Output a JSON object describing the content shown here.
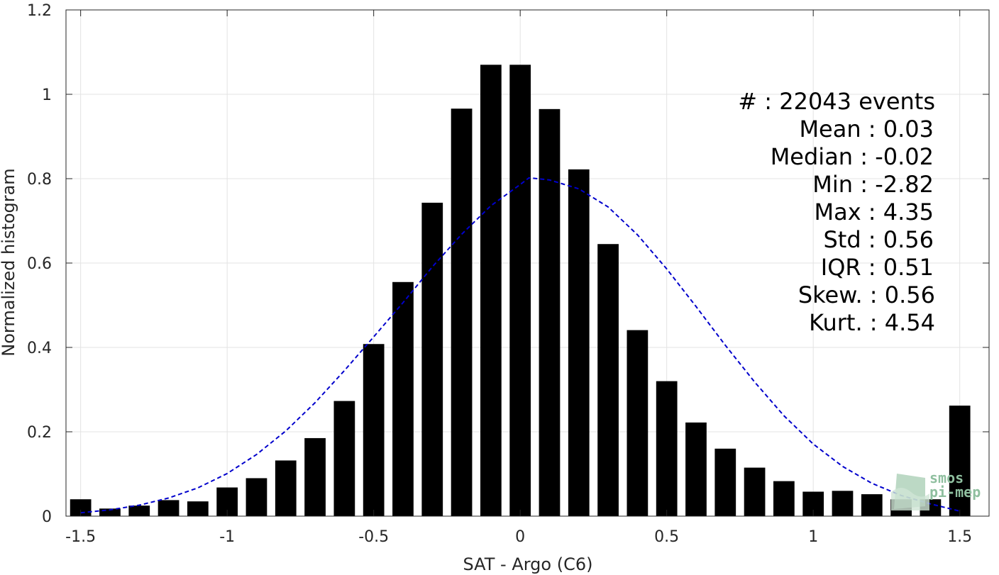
{
  "chart_data": {
    "type": "bar",
    "xlabel": "SAT - Argo (C6)",
    "ylabel": "Normalized histogram",
    "xlim": [
      -1.55,
      1.6
    ],
    "ylim": [
      0,
      1.2
    ],
    "xticks": [
      -1.5,
      -1,
      -0.5,
      0,
      0.5,
      1,
      1.5
    ],
    "xtick_labels": [
      "-1.5",
      "-1",
      "-0.5",
      "0",
      "0.5",
      "1",
      "1.5"
    ],
    "yticks": [
      0,
      0.2,
      0.4,
      0.6,
      0.8,
      1,
      1.2
    ],
    "ytick_labels": [
      "0",
      "0.2",
      "0.4",
      "0.6",
      "0.8",
      "1",
      "1.2"
    ],
    "grid": true,
    "bar_color": "#000000",
    "bars": {
      "x": [
        -1.5,
        -1.4,
        -1.3,
        -1.2,
        -1.1,
        -1.0,
        -0.9,
        -0.8,
        -0.7,
        -0.6,
        -0.5,
        -0.4,
        -0.3,
        -0.2,
        -0.1,
        0.0,
        0.1,
        0.2,
        0.3,
        0.4,
        0.5,
        0.6,
        0.7,
        0.8,
        0.9,
        1.0,
        1.1,
        1.2,
        1.3,
        1.4,
        1.5
      ],
      "values": [
        0.04,
        0.018,
        0.025,
        0.038,
        0.035,
        0.068,
        0.09,
        0.132,
        0.185,
        0.273,
        0.408,
        0.555,
        0.743,
        0.966,
        1.07,
        1.07,
        0.965,
        0.822,
        0.645,
        0.441,
        0.32,
        0.222,
        0.16,
        0.115,
        0.083,
        0.058,
        0.06,
        0.052,
        0.04,
        0.04,
        0.262
      ]
    },
    "fit_curve": {
      "style": "dashed",
      "color": "#0000cc",
      "x": [
        -1.5,
        -1.4,
        -1.3,
        -1.2,
        -1.1,
        -1.0,
        -0.9,
        -0.8,
        -0.7,
        -0.6,
        -0.5,
        -0.4,
        -0.3,
        -0.2,
        -0.1,
        0.0,
        0.03,
        0.1,
        0.2,
        0.3,
        0.4,
        0.5,
        0.6,
        0.7,
        0.8,
        0.9,
        1.0,
        1.1,
        1.2,
        1.3,
        1.4,
        1.5
      ],
      "values": [
        0.008,
        0.015,
        0.026,
        0.043,
        0.067,
        0.101,
        0.146,
        0.202,
        0.269,
        0.345,
        0.425,
        0.506,
        0.591,
        0.668,
        0.736,
        0.786,
        0.802,
        0.797,
        0.776,
        0.733,
        0.667,
        0.586,
        0.497,
        0.405,
        0.318,
        0.238,
        0.171,
        0.118,
        0.078,
        0.049,
        0.029,
        0.012
      ]
    }
  },
  "stats": {
    "line1": "#   : 22043 events",
    "line2": "Mean : 0.03",
    "line3": "Median : -0.02",
    "line4": "Min : -2.82",
    "line5": "Max : 4.35",
    "line6": "Std : 0.56",
    "line7": "IQR : 0.51",
    "line8": "Skew. : 0.56",
    "line9": "Kurt. : 4.54"
  },
  "logo": {
    "line1": "smos",
    "line2": "pi-mep",
    "color": "#8fbf9f"
  }
}
